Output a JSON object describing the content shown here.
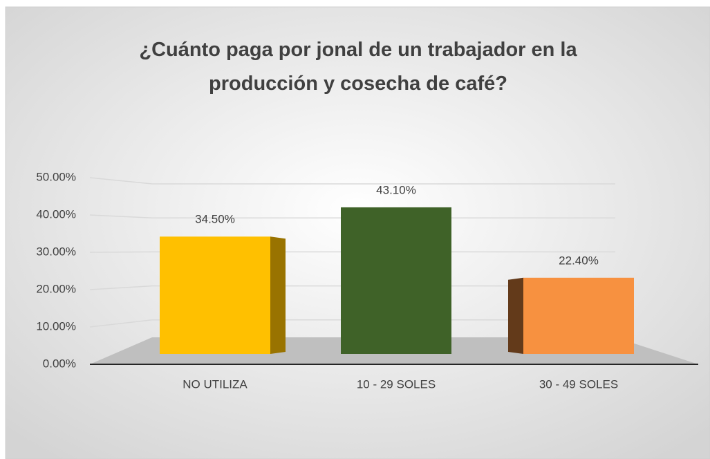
{
  "chart_data": {
    "type": "bar3d",
    "title": "¿Cuánto paga por jonal de un trabajador en la producción y cosecha de café?",
    "categories": [
      "NO UTILIZA",
      "10 - 29 SOLES",
      "30 - 49 SOLES"
    ],
    "values": [
      34.5,
      43.1,
      22.4
    ],
    "value_labels": [
      "34.50%",
      "43.10%",
      "22.40%"
    ],
    "colors": [
      "#ffc000",
      "#3f6228",
      "#f79140"
    ],
    "ylim": [
      0,
      50
    ],
    "yticks": [
      {
        "value": 0,
        "label": "0.00%"
      },
      {
        "value": 10,
        "label": "10.00%"
      },
      {
        "value": 20,
        "label": "20.00%"
      },
      {
        "value": 30,
        "label": "30.00%"
      },
      {
        "value": 40,
        "label": "40.00%"
      },
      {
        "value": 50,
        "label": "50.00%"
      }
    ],
    "grid": true
  }
}
